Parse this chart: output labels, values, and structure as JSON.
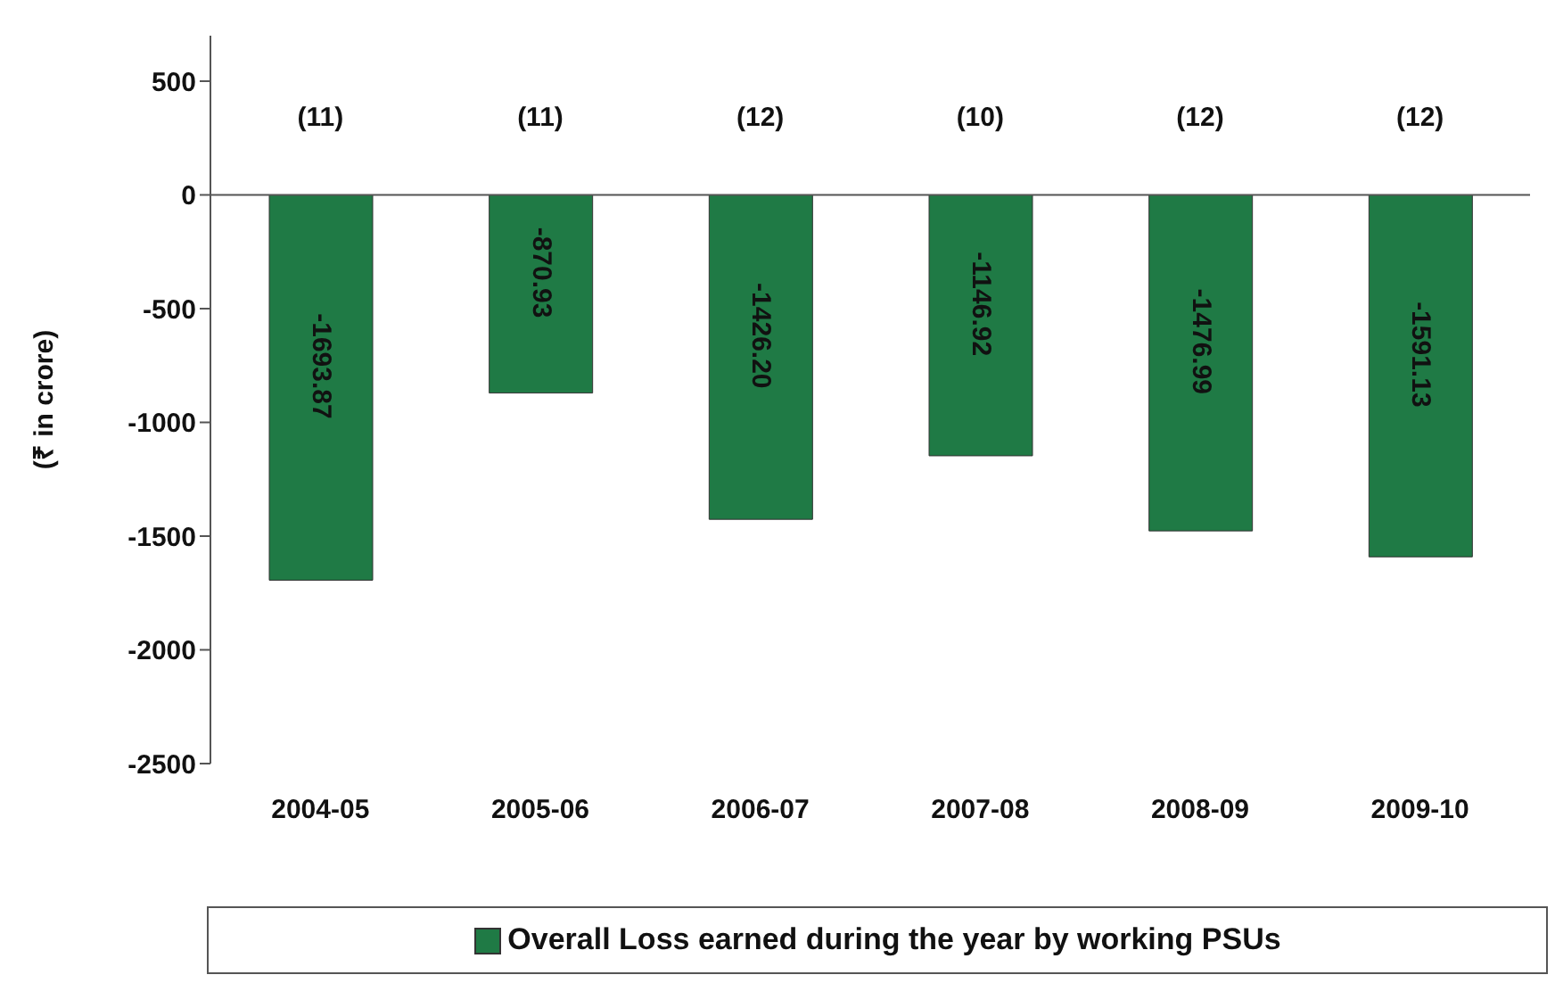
{
  "chart_data": {
    "type": "bar",
    "ylabel": "(₹ in crore)",
    "categories": [
      "2004-05",
      "2005-06",
      "2006-07",
      "2007-08",
      "2008-09",
      "2009-10"
    ],
    "series": [
      {
        "name": "Overall Loss earned during the year by working PSUs",
        "color": "#1f7a45",
        "values": [
          -1693.87,
          -870.93,
          -1426.2,
          -1146.92,
          -1476.99,
          -1591.13
        ],
        "value_labels": [
          "-1693.87",
          "-870.93",
          "-1426.20",
          "-1146.92",
          "-1476.99",
          "-1591.13"
        ]
      }
    ],
    "ylim": [
      -2500,
      700
    ],
    "yticks": [
      -2500,
      -2000,
      -1500,
      -1000,
      -500,
      0,
      500
    ],
    "legend": "bottom",
    "annotations": [
      "(11)",
      "(11)",
      "(12)",
      "(10)",
      "(12)",
      "(12)"
    ]
  }
}
